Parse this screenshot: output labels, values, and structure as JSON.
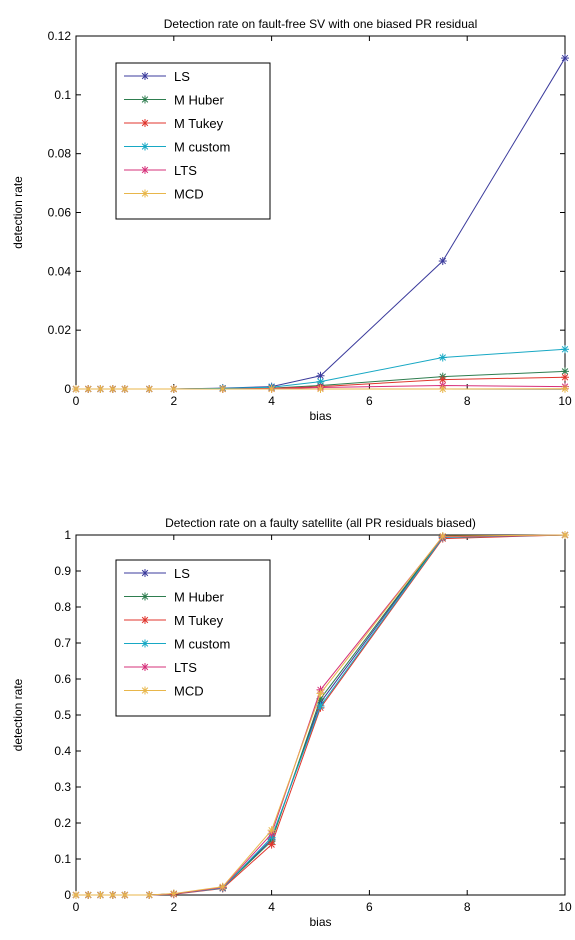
{
  "chart_data": [
    {
      "type": "line",
      "title": "Detection rate on fault-free SV with one biased PR residual",
      "xlabel": "bias",
      "ylabel": "detection rate",
      "xlim": [
        0,
        10
      ],
      "ylim": [
        0,
        0.12
      ],
      "xticks": [
        "0",
        "2",
        "4",
        "6",
        "8",
        "10"
      ],
      "yticks": [
        "0",
        "0.02",
        "0.04",
        "0.06",
        "0.08",
        "0.1",
        "0.12"
      ],
      "x": [
        0,
        0.25,
        0.5,
        0.75,
        1,
        1.5,
        2,
        3,
        4,
        5,
        7.5,
        10
      ],
      "grid": false,
      "legend_position": "top-left",
      "series": [
        {
          "name": "LS",
          "color": "#3b3b9c",
          "values": [
            0,
            0,
            0,
            0,
            0,
            0,
            0,
            0.0003,
            0.0008,
            0.0045,
            0.0435,
            0.1125
          ]
        },
        {
          "name": "M Huber",
          "color": "#2e7d4f",
          "values": [
            0,
            0,
            0,
            0,
            0,
            0,
            0,
            0.0001,
            0.0003,
            0.0012,
            0.0042,
            0.006
          ]
        },
        {
          "name": "M Tukey",
          "color": "#e0352c",
          "values": [
            0,
            0,
            0,
            0,
            0,
            0,
            0,
            0.0001,
            0.0002,
            0.0008,
            0.0032,
            0.004
          ]
        },
        {
          "name": "M custom",
          "color": "#17a8c4",
          "values": [
            0,
            0,
            0,
            0,
            0,
            0,
            0,
            0.0002,
            0.0006,
            0.0025,
            0.0107,
            0.0135
          ]
        },
        {
          "name": "LTS",
          "color": "#d6307a",
          "values": [
            0,
            0,
            0,
            0,
            0,
            0,
            0,
            0,
            0.0001,
            0.0005,
            0.0012,
            0.0008
          ]
        },
        {
          "name": "MCD",
          "color": "#e8b64a",
          "values": [
            0,
            0,
            0,
            0,
            0,
            0,
            0,
            0,
            0,
            0,
            0,
            0.0001
          ]
        }
      ]
    },
    {
      "type": "line",
      "title": "Detection rate on a faulty satellite (all PR residuals biased)",
      "xlabel": "bias",
      "ylabel": "detection rate",
      "xlim": [
        0,
        10
      ],
      "ylim": [
        0,
        1
      ],
      "xticks": [
        "0",
        "2",
        "4",
        "6",
        "8",
        "10"
      ],
      "yticks": [
        "0",
        "0.1",
        "0.2",
        "0.3",
        "0.4",
        "0.5",
        "0.6",
        "0.7",
        "0.8",
        "0.9",
        "1"
      ],
      "x": [
        0,
        0.25,
        0.5,
        0.75,
        1,
        1.5,
        2,
        3,
        4,
        5,
        7.5,
        10
      ],
      "grid": false,
      "legend_position": "top-left",
      "series": [
        {
          "name": "LS",
          "color": "#3b3b9c",
          "values": [
            0,
            0,
            0,
            0,
            0,
            0,
            0.003,
            0.02,
            0.155,
            0.535,
            0.995,
            1
          ]
        },
        {
          "name": "M Huber",
          "color": "#2e7d4f",
          "values": [
            0,
            0,
            0,
            0,
            0,
            0,
            0.003,
            0.02,
            0.15,
            0.545,
            0.995,
            1
          ]
        },
        {
          "name": "M Tukey",
          "color": "#e0352c",
          "values": [
            0,
            0,
            0,
            0,
            0,
            0,
            0.002,
            0.018,
            0.14,
            0.52,
            0.99,
            1
          ]
        },
        {
          "name": "M custom",
          "color": "#17a8c4",
          "values": [
            0,
            0,
            0,
            0,
            0,
            0,
            0.003,
            0.019,
            0.16,
            0.525,
            0.993,
            1
          ]
        },
        {
          "name": "LTS",
          "color": "#d6307a",
          "values": [
            0,
            0,
            0,
            0,
            0,
            0,
            0.003,
            0.021,
            0.17,
            0.57,
            0.995,
            1
          ]
        },
        {
          "name": "MCD",
          "color": "#e8b64a",
          "values": [
            0,
            0,
            0,
            0,
            0,
            0,
            0.004,
            0.023,
            0.18,
            0.56,
            0.997,
            1
          ]
        }
      ]
    }
  ]
}
